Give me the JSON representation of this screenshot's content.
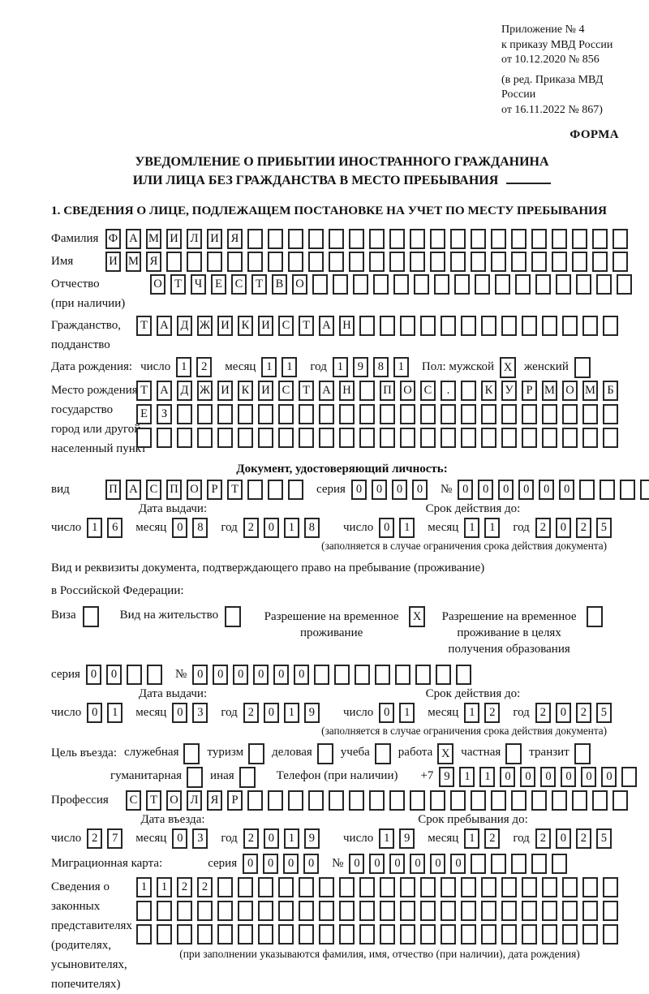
{
  "header": {
    "line1": "Приложение № 4",
    "line2": "к приказу МВД России",
    "line3": "от 10.12.2020 № 856",
    "line4": "(в ред. Приказа МВД России",
    "line5": "от 16.11.2022 № 867)",
    "form_label": "ФОРМА"
  },
  "title": {
    "line1": "УВЕДОМЛЕНИЕ О ПРИБЫТИИ ИНОСТРАННОГО ГРАЖДАНИНА",
    "line2": "ИЛИ ЛИЦА БЕЗ ГРАЖДАНСТВА В МЕСТО ПРЕБЫВАНИЯ"
  },
  "section1_heading": "1. СВЕДЕНИЯ О ЛИЦЕ, ПОДЛЕЖАЩЕМ ПОСТАНОВКЕ НА УЧЕТ ПО МЕСТУ ПРЕБЫВАНИЯ",
  "lex": {
    "day": "число",
    "month": "месяц",
    "year": "год",
    "series": "серия",
    "number_sign": "№",
    "issue_date": "Дата выдачи:",
    "valid_until": "Срок действия до:",
    "validity_note": "(заполняется в случае ограничения срока действия документа)"
  },
  "fields": {
    "surname": {
      "label": "Фамилия",
      "cells": {
        "value": "ФАМИЛИЯ",
        "length": 26
      }
    },
    "first_name": {
      "label": "Имя",
      "cells": {
        "value": "ИМЯ",
        "length": 26
      }
    },
    "patronymic": {
      "label": "Отчество",
      "sublabel": "(при наличии)",
      "cells": {
        "value": "ОТЧЕСТВО",
        "length": 24
      }
    },
    "citizenship": {
      "label": "Гражданство,",
      "sublabel": "подданство",
      "cells": {
        "value": "ТАДЖИКИСТАН",
        "length": 24
      }
    },
    "birth": {
      "label": "Дата рождения:",
      "day": "12",
      "month": "11",
      "year": "1981",
      "sex_label": "Пол: мужской",
      "male": "X",
      "female_label": "женский",
      "female": ""
    },
    "birthplace": {
      "label": "Место рождения:",
      "sublabel1": "государство",
      "sublabel2": "город или другой",
      "sublabel3": "населенный пункт",
      "row1": {
        "value": "ТАДЖИКИСТАН ПОС. КУРМОМБ",
        "length": 24
      },
      "row2": {
        "value": "ЕЗ",
        "length": 24
      },
      "row3": {
        "value": "",
        "length": 24
      }
    },
    "identity_doc": {
      "heading": "Документ, удостоверяющий личность:",
      "kind_label": "вид",
      "kind": {
        "value": "ПАСПОРТ",
        "length": 10
      },
      "series": {
        "value": "0000",
        "length": 4
      },
      "number": {
        "value": "000000",
        "length": 11
      },
      "issue": {
        "day": "16",
        "month": "08",
        "year": "2018"
      },
      "valid": {
        "day": "01",
        "month": "11",
        "year": "2025"
      }
    },
    "residence_doc": {
      "intro1": "Вид и реквизиты документа, подтверждающего право на пребывание (проживание)",
      "intro2": "в Российской Федерации:",
      "options": [
        {
          "label": "Виза",
          "checked": ""
        },
        {
          "label": "Вид на жительство",
          "checked": ""
        },
        {
          "label": "Разрешение на временное проживание",
          "checked": "X"
        },
        {
          "label": "Разрешение на временное проживание в целях получения образования",
          "checked": ""
        }
      ],
      "series": {
        "value": "00",
        "length": 4
      },
      "number": {
        "value": "000000",
        "length": 14
      },
      "issue": {
        "day": "01",
        "month": "03",
        "year": "2019"
      },
      "valid": {
        "day": "01",
        "month": "12",
        "year": "2025"
      }
    },
    "purpose": {
      "label": "Цель въезда:",
      "options_row1": [
        {
          "label": "служебная",
          "checked": ""
        },
        {
          "label": "туризм",
          "checked": ""
        },
        {
          "label": "деловая",
          "checked": ""
        },
        {
          "label": "учеба",
          "checked": ""
        },
        {
          "label": "работа",
          "checked": "X"
        },
        {
          "label": "частная",
          "checked": ""
        },
        {
          "label": "транзит",
          "checked": ""
        }
      ],
      "options_row2": [
        {
          "label": "гуманитарная",
          "checked": ""
        },
        {
          "label": "иная",
          "checked": ""
        }
      ],
      "phone_label": "Телефон (при наличии)",
      "phone_prefix": "+7",
      "phone": {
        "value": "911000000",
        "length": 10
      }
    },
    "profession": {
      "label": "Профессия",
      "cells": {
        "value": "СТОЛЯР",
        "length": 25
      }
    },
    "entry": {
      "left_heading": "Дата въезда:",
      "right_heading": "Срок пребывания до:",
      "date": {
        "day": "27",
        "month": "03",
        "year": "2019"
      },
      "until": {
        "day": "19",
        "month": "12",
        "year": "2025"
      }
    },
    "migration_card": {
      "label": "Миграционная карта:",
      "series": {
        "value": "0000",
        "length": 4
      },
      "number": {
        "value": "000000",
        "length": 11
      }
    },
    "representatives": {
      "label_lines": [
        "Сведения о",
        "законных",
        "представителях",
        "(родителях,",
        "усыновителях,",
        "попечителях)"
      ],
      "row1": {
        "value": "1122",
        "length": 24
      },
      "row2": {
        "value": "",
        "length": 24
      },
      "row3": {
        "value": "",
        "length": 24
      },
      "note": "(при заполнении указываются фамилия, имя, отчество (при наличии), дата рождения)"
    }
  }
}
